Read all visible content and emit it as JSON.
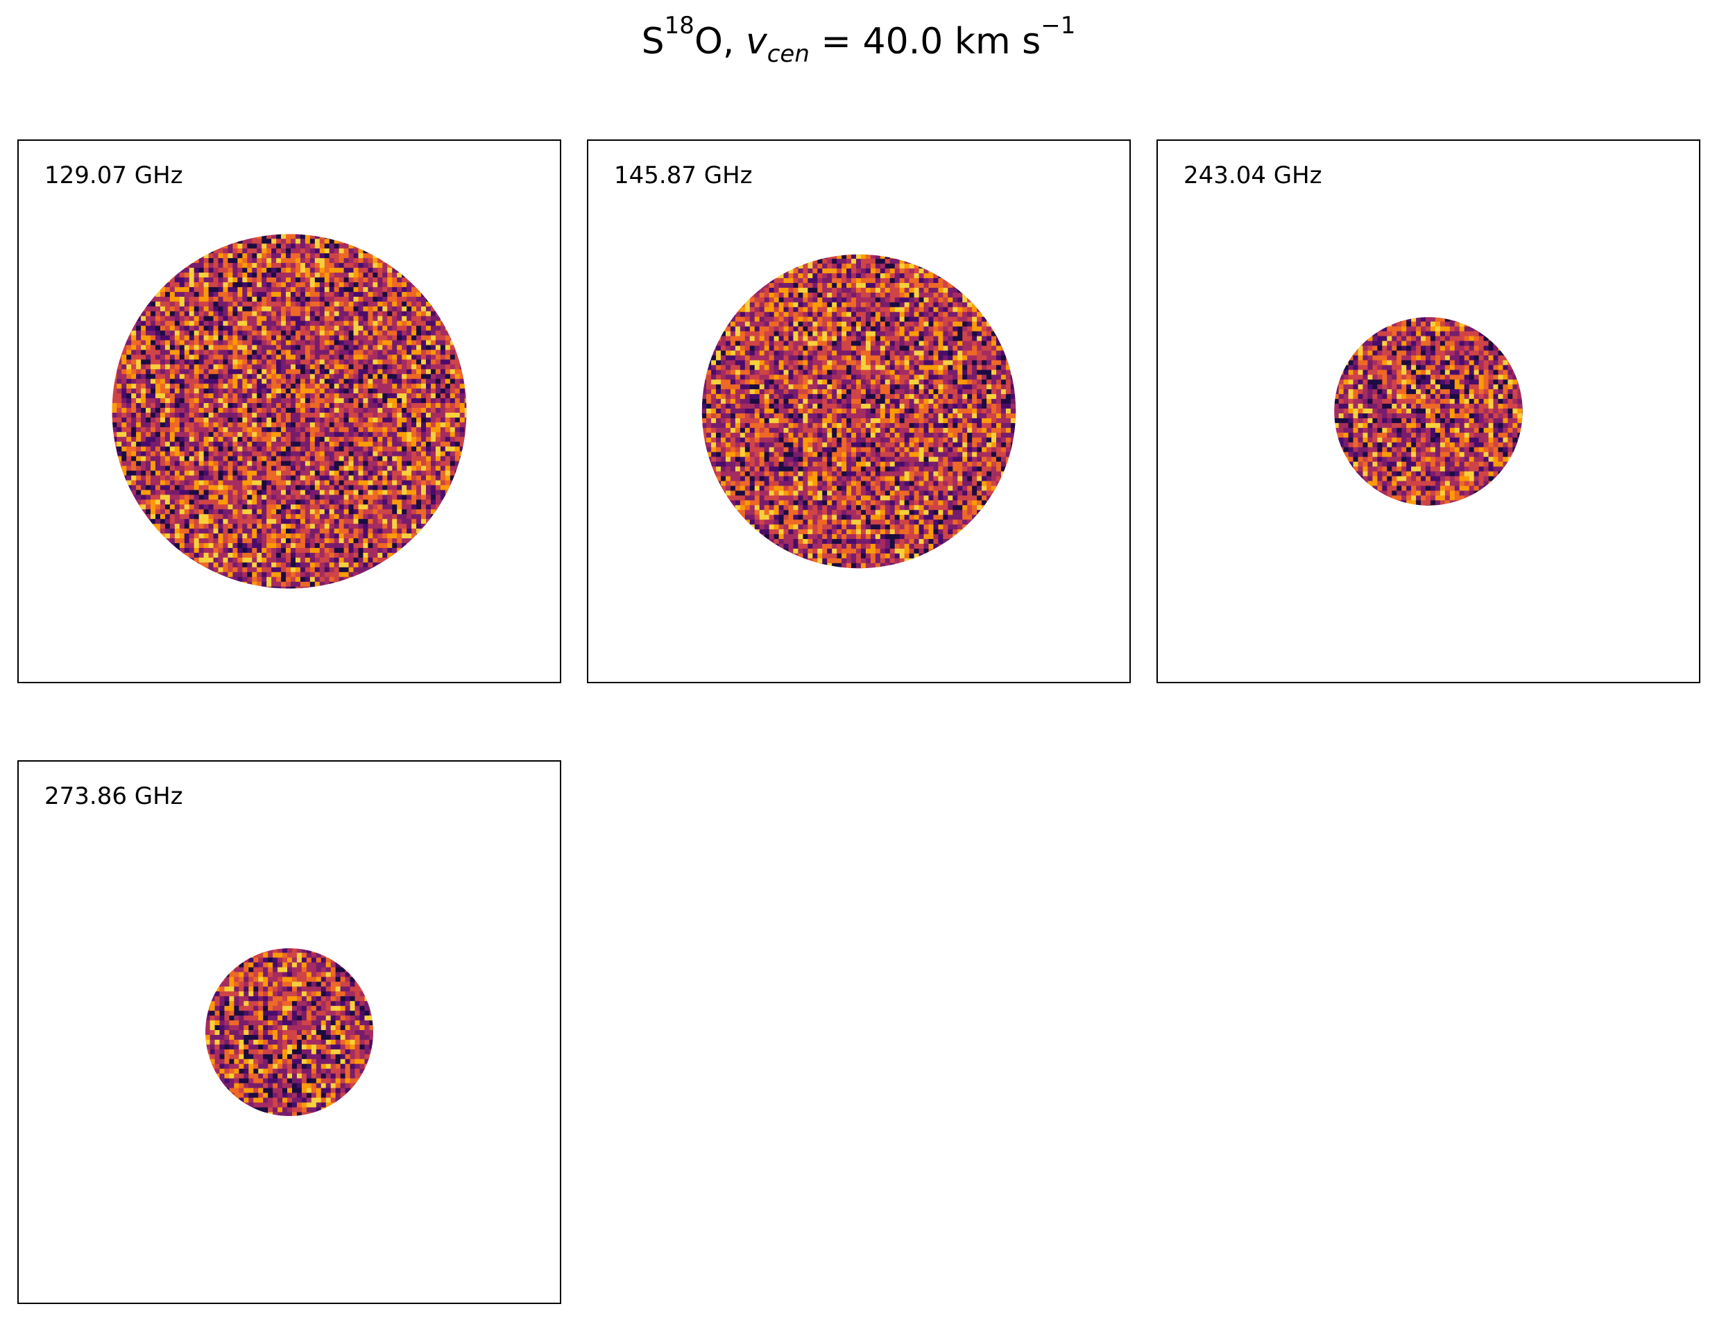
{
  "figure": {
    "title_species_main": "S",
    "title_species_sup": "18",
    "title_species_tail": "O, ",
    "title_var": "v",
    "title_var_sub": "cen",
    "title_rest": " =  40.0 km s",
    "title_unit_sup": "−1"
  },
  "chart_data": [
    {
      "type": "heatmap",
      "label": "129.07 GHz",
      "frequency_ghz": 129.07,
      "beam_fraction": 0.655
    },
    {
      "type": "heatmap",
      "label": "145.87 GHz",
      "frequency_ghz": 145.87,
      "beam_fraction": 0.58
    },
    {
      "type": "heatmap",
      "label": "243.04 GHz",
      "frequency_ghz": 243.04,
      "beam_fraction": 0.348
    },
    {
      "type": "heatmap",
      "label": "273.86 GHz",
      "frequency_ghz": 273.86,
      "beam_fraction": 0.31
    }
  ],
  "colormap": {
    "name": "inferno",
    "colors": [
      "#1b0c41",
      "#4a0c6b",
      "#781c6d",
      "#a52c60",
      "#cf4446",
      "#ed6925",
      "#fb9b06",
      "#f7d13d"
    ]
  }
}
